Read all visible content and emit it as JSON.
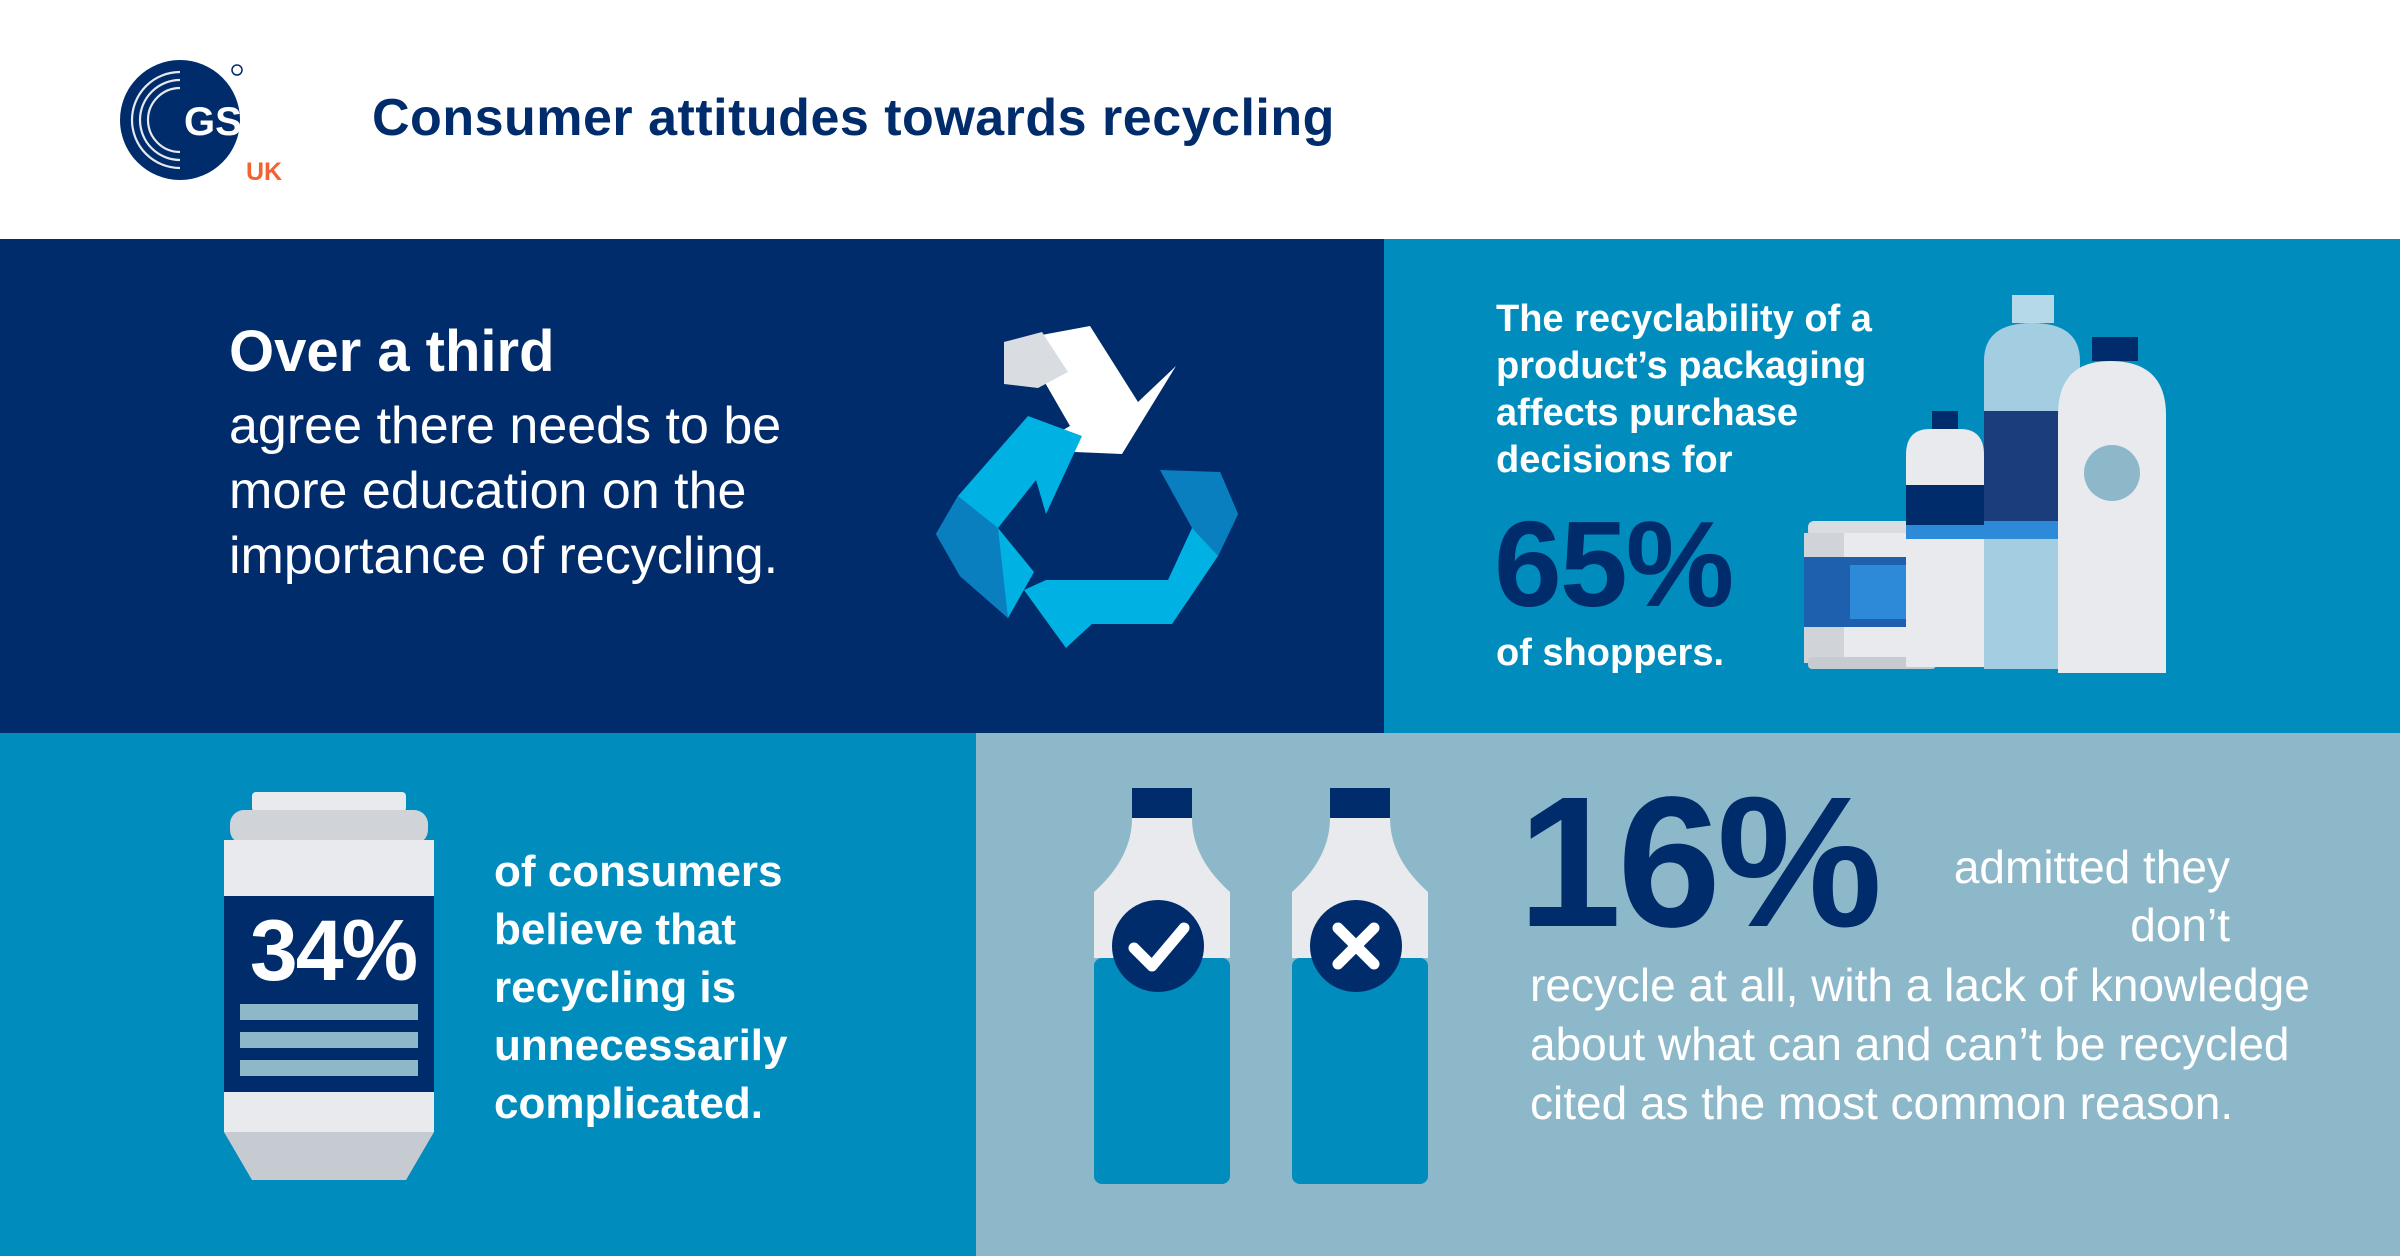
{
  "header": {
    "logo_text": "GS1",
    "logo_sub": "UK",
    "title": "Consumer attitudes towards recycling"
  },
  "panel_education": {
    "headline": "Over a third",
    "body": "agree there needs to be more education on the importance of recycling."
  },
  "panel_purchase": {
    "body": "The recyclability of a product’s packaging affects purchase decisions for",
    "stat": "65%",
    "footer": "of shoppers."
  },
  "panel_complicated": {
    "stat": "34%",
    "body": "of consumers believe that recycling is unnecessarily complicated."
  },
  "panel_dont_recycle": {
    "stat": "16%",
    "body_part1": "admitted they don’t",
    "body_part2": "recycle at all, with a lack of knowledge about what can and can’t be recycled cited as the most common reason."
  },
  "colors": {
    "navy": "#002c6c",
    "mid_blue": "#008dbd",
    "light_blue": "#00b2e3",
    "pale_blue": "#8db8ca",
    "orange": "#f26334"
  },
  "icons": [
    "gs1-logo",
    "recycle-icon",
    "bottles-icon",
    "can-icon",
    "check-bottle-icon",
    "cross-bottle-icon"
  ]
}
